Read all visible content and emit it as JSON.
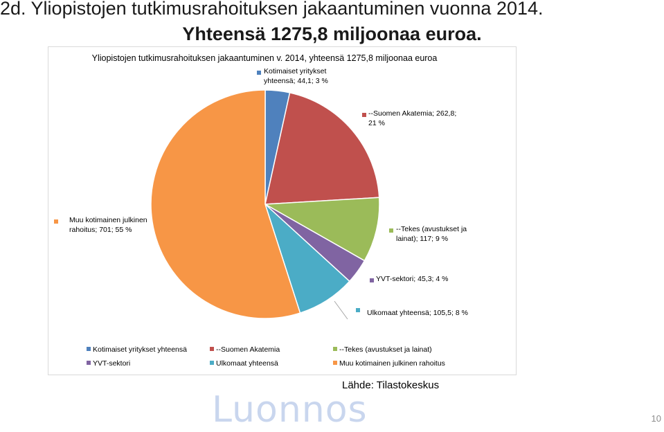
{
  "slide": {
    "title_line1": "2d. Yliopistojen tutkimusrahoituksen jakaantuminen vuonna 2014.",
    "title_line2": "Yhteensä 1275,8 miljoonaa euroa.",
    "source": "Lähde: Tilastokeskus",
    "watermark": "Luonnos",
    "page_number": "10"
  },
  "chart_data": {
    "type": "pie",
    "title": "Yliopistojen tutkimusrahoituksen jakaantuminen v. 2014, yhteensä 1275,8 miljoonaa euroa",
    "legend_position": "bottom",
    "slices": [
      {
        "legend": "Kotimaiset yritykset yhteensä",
        "label_lines": [
          "Kotimaiset yritykset",
          "yhteensä; 44,1; 3 %"
        ],
        "value": 44.1,
        "percent": 3,
        "color": "#4f81bd"
      },
      {
        "legend": "--Suomen Akatemia",
        "label_lines": [
          "--Suomen Akatemia; 262,8;",
          "21 %"
        ],
        "value": 262.8,
        "percent": 21,
        "color": "#c0504d"
      },
      {
        "legend": "--Tekes (avustukset ja lainat)",
        "label_lines": [
          "--Tekes (avustukset ja",
          "lainat); 117; 9 %"
        ],
        "value": 117,
        "percent": 9,
        "color": "#9bbb59"
      },
      {
        "legend": "YVT-sektori",
        "label_lines": [
          "YVT-sektori; 45,3; 4 %"
        ],
        "value": 45.3,
        "percent": 4,
        "color": "#8064a2"
      },
      {
        "legend": "Ulkomaat yhteensä",
        "label_lines": [
          "Ulkomaat yhteensä; 105,5; 8 %"
        ],
        "value": 105.5,
        "percent": 8,
        "color": "#4bacc6"
      },
      {
        "legend": "Muu kotimainen julkinen rahoitus",
        "label_lines": [
          "Muu kotimainen julkinen",
          "rahoitus; 701; 55 %"
        ],
        "value": 701,
        "percent": 55,
        "color": "#f79646"
      }
    ]
  }
}
